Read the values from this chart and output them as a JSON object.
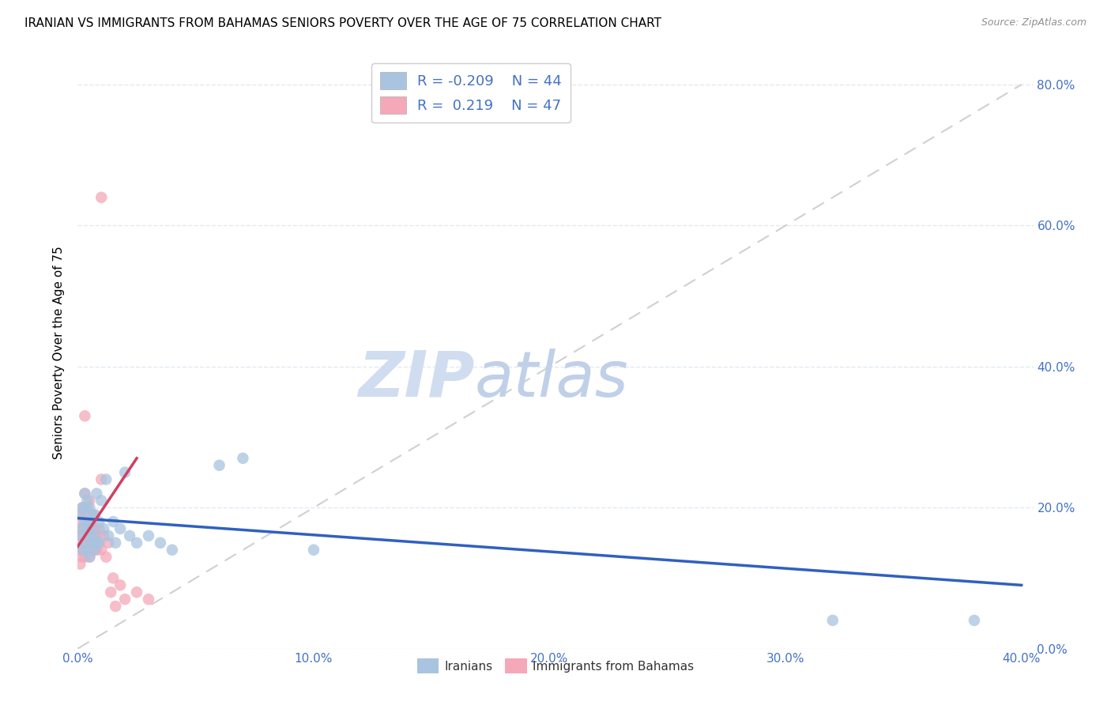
{
  "title": "IRANIAN VS IMMIGRANTS FROM BAHAMAS SENIORS POVERTY OVER THE AGE OF 75 CORRELATION CHART",
  "source": "Source: ZipAtlas.com",
  "ylabel": "Seniors Poverty Over the Age of 75",
  "iranians_R": -0.209,
  "iranians_N": 44,
  "bahamas_R": 0.219,
  "bahamas_N": 47,
  "iranians_color": "#a8c4e0",
  "bahamas_color": "#f4a8b8",
  "iranians_line_color": "#3060c0",
  "bahamas_line_color": "#d04060",
  "diagonal_color": "#c8c8c8",
  "watermark_zip_color": "#d0ddf0",
  "watermark_atlas_color": "#c0d0e8",
  "grid_color": "#dde8f0",
  "background_color": "#ffffff",
  "title_fontsize": 11,
  "axis_label_color": "#4472c4",
  "iranians_x": [
    0.001,
    0.001,
    0.002,
    0.002,
    0.002,
    0.003,
    0.003,
    0.003,
    0.003,
    0.004,
    0.004,
    0.004,
    0.005,
    0.005,
    0.005,
    0.005,
    0.006,
    0.006,
    0.006,
    0.007,
    0.007,
    0.007,
    0.008,
    0.008,
    0.009,
    0.009,
    0.01,
    0.011,
    0.012,
    0.013,
    0.015,
    0.016,
    0.018,
    0.02,
    0.022,
    0.025,
    0.03,
    0.035,
    0.04,
    0.06,
    0.07,
    0.1,
    0.32,
    0.38
  ],
  "iranians_y": [
    0.16,
    0.19,
    0.14,
    0.17,
    0.2,
    0.15,
    0.18,
    0.2,
    0.22,
    0.14,
    0.17,
    0.21,
    0.13,
    0.16,
    0.18,
    0.2,
    0.15,
    0.17,
    0.19,
    0.14,
    0.16,
    0.19,
    0.15,
    0.22,
    0.15,
    0.18,
    0.21,
    0.17,
    0.24,
    0.16,
    0.18,
    0.15,
    0.17,
    0.25,
    0.16,
    0.15,
    0.16,
    0.15,
    0.14,
    0.26,
    0.27,
    0.14,
    0.04,
    0.04
  ],
  "bahamas_x": [
    0.001,
    0.001,
    0.001,
    0.001,
    0.001,
    0.002,
    0.002,
    0.002,
    0.002,
    0.002,
    0.003,
    0.003,
    0.003,
    0.003,
    0.003,
    0.004,
    0.004,
    0.004,
    0.004,
    0.005,
    0.005,
    0.005,
    0.005,
    0.006,
    0.006,
    0.006,
    0.007,
    0.007,
    0.007,
    0.008,
    0.008,
    0.009,
    0.009,
    0.01,
    0.01,
    0.011,
    0.012,
    0.013,
    0.014,
    0.015,
    0.016,
    0.018,
    0.02,
    0.025,
    0.03,
    0.01,
    0.003
  ],
  "bahamas_y": [
    0.12,
    0.14,
    0.15,
    0.17,
    0.19,
    0.13,
    0.14,
    0.16,
    0.18,
    0.2,
    0.13,
    0.15,
    0.17,
    0.19,
    0.22,
    0.14,
    0.16,
    0.18,
    0.2,
    0.13,
    0.15,
    0.17,
    0.21,
    0.14,
    0.16,
    0.18,
    0.15,
    0.17,
    0.19,
    0.14,
    0.16,
    0.15,
    0.17,
    0.14,
    0.24,
    0.16,
    0.13,
    0.15,
    0.08,
    0.1,
    0.06,
    0.09,
    0.07,
    0.08,
    0.07,
    0.64,
    0.33
  ],
  "xlim": [
    0.0,
    0.405
  ],
  "ylim": [
    0.0,
    0.84
  ],
  "x_ticks": [
    0.0,
    0.1,
    0.2,
    0.3,
    0.4
  ],
  "x_tick_labels": [
    "0.0%",
    "10.0%",
    "20.0%",
    "30.0%",
    "40.0%"
  ],
  "y_ticks": [
    0.0,
    0.2,
    0.4,
    0.6,
    0.8
  ],
  "y_tick_labels_right": [
    "0.0%",
    "20.0%",
    "40.0%",
    "60.0%",
    "80.0%"
  ],
  "iran_line_x": [
    0.0,
    0.4
  ],
  "iran_line_y": [
    0.185,
    0.09
  ],
  "bah_line_x": [
    0.0,
    0.025
  ],
  "bah_line_y": [
    0.145,
    0.27
  ],
  "diag_line_x": [
    0.0,
    0.4
  ],
  "diag_line_y": [
    0.0,
    0.8
  ]
}
